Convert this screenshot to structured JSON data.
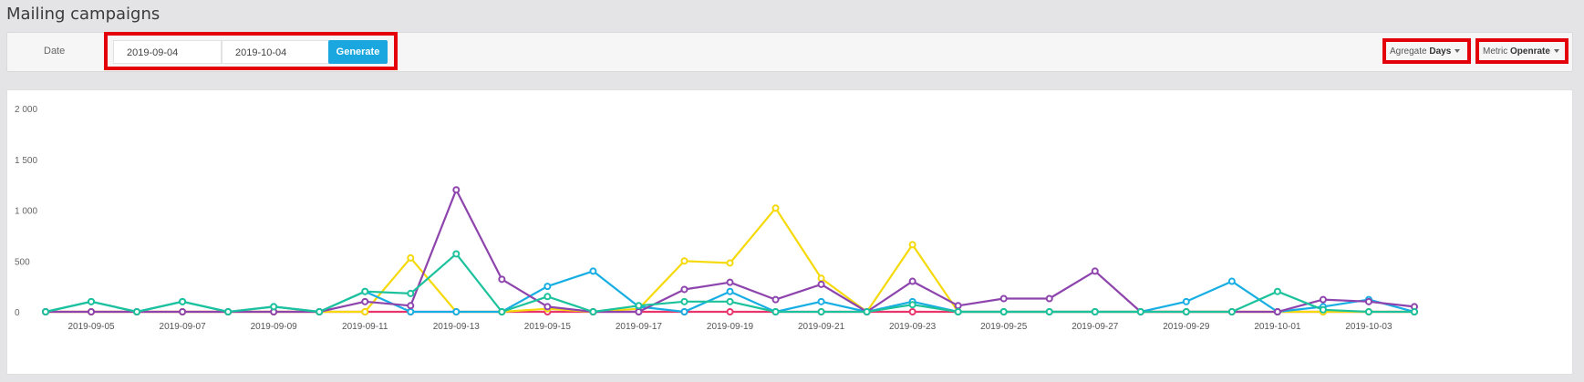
{
  "page": {
    "title": "Mailing campaigns"
  },
  "filters": {
    "date_label": "Date",
    "start_date": "2019-09-04",
    "end_date": "2019-10-04",
    "generate_label": "Generate",
    "aggregate": {
      "label": "Agregate",
      "value": "Days"
    },
    "metric": {
      "label": "Metric",
      "value": "Openrate"
    },
    "highlight_color": "#e3000b",
    "accent_color": "#1aa7e0"
  },
  "chart_data": {
    "type": "line",
    "x": [
      "2019-09-04",
      "2019-09-05",
      "2019-09-06",
      "2019-09-07",
      "2019-09-08",
      "2019-09-09",
      "2019-09-10",
      "2019-09-11",
      "2019-09-12",
      "2019-09-13",
      "2019-09-14",
      "2019-09-15",
      "2019-09-16",
      "2019-09-17",
      "2019-09-18",
      "2019-09-19",
      "2019-09-20",
      "2019-09-21",
      "2019-09-22",
      "2019-09-23",
      "2019-09-24",
      "2019-09-25",
      "2019-09-26",
      "2019-09-27",
      "2019-09-28",
      "2019-09-29",
      "2019-09-30",
      "2019-10-01",
      "2019-10-02",
      "2019-10-03",
      "2019-10-04"
    ],
    "x_tick_labels": [
      "2019-09-05",
      "2019-09-07",
      "2019-09-09",
      "2019-09-11",
      "2019-09-13",
      "2019-09-15",
      "2019-09-17",
      "2019-09-19",
      "2019-09-21",
      "2019-09-23",
      "2019-09-25",
      "2019-09-27",
      "2019-09-29",
      "2019-10-01",
      "2019-10-03"
    ],
    "y_ticks": [
      0,
      500,
      1000,
      1500,
      2000
    ],
    "y_tick_labels": [
      "0",
      "500",
      "1 000",
      "1 500",
      "2 000"
    ],
    "ylim": [
      0,
      2000
    ],
    "grid": false,
    "legend": "none",
    "series": [
      {
        "color": "#e8356b",
        "values": [
          0,
          0,
          0,
          0,
          0,
          0,
          0,
          0,
          0,
          0,
          0,
          0,
          0,
          0,
          0,
          0,
          0,
          0,
          0,
          0,
          0,
          0,
          0,
          0,
          0,
          0,
          0,
          0,
          0,
          0,
          0
        ]
      },
      {
        "color": "#f5d90a",
        "values": [
          0,
          0,
          0,
          0,
          0,
          0,
          0,
          0,
          530,
          0,
          0,
          30,
          0,
          30,
          500,
          480,
          1020,
          330,
          0,
          660,
          0,
          0,
          0,
          0,
          0,
          0,
          0,
          0,
          0,
          0,
          0
        ]
      },
      {
        "color": "#17aee3",
        "values": [
          0,
          100,
          0,
          100,
          0,
          50,
          0,
          200,
          0,
          0,
          0,
          250,
          400,
          50,
          0,
          200,
          0,
          100,
          0,
          100,
          0,
          0,
          0,
          0,
          0,
          100,
          300,
          0,
          50,
          120,
          0
        ]
      },
      {
        "color": "#8e44ad",
        "values": [
          0,
          0,
          0,
          0,
          0,
          0,
          0,
          100,
          60,
          1200,
          320,
          50,
          0,
          0,
          220,
          290,
          120,
          270,
          0,
          300,
          60,
          130,
          130,
          400,
          0,
          0,
          0,
          0,
          120,
          100,
          50
        ]
      },
      {
        "color": "#1cc29c",
        "values": [
          0,
          100,
          0,
          100,
          0,
          50,
          0,
          200,
          180,
          570,
          0,
          150,
          0,
          60,
          100,
          100,
          0,
          0,
          0,
          70,
          0,
          0,
          0,
          0,
          0,
          0,
          0,
          200,
          20,
          0,
          0
        ]
      }
    ]
  }
}
